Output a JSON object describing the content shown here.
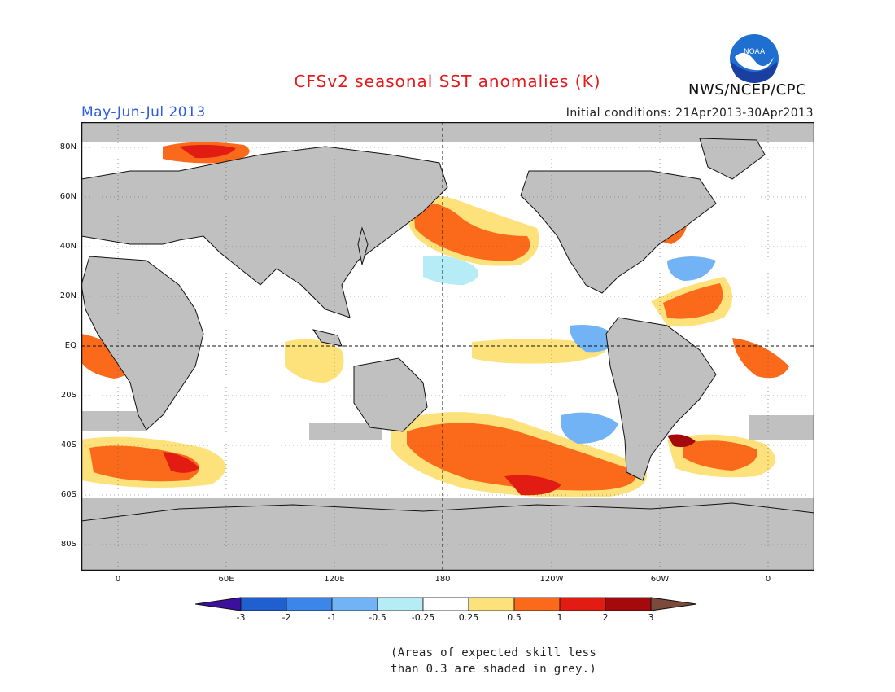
{
  "header": {
    "title": "CFSv2 seasonal SST anomalies (K)",
    "season": "May-Jun-Jul 2013",
    "initial_conditions": "Initial conditions: 21Apr2013-30Apr2013",
    "agency": "NWS/NCEP/CPC",
    "logo_text": "NOAA"
  },
  "map": {
    "lat_labels": [
      "80N",
      "60N",
      "40N",
      "20N",
      "EQ",
      "20S",
      "40S",
      "60S",
      "80S"
    ],
    "lon_labels": [
      "0",
      "60E",
      "120E",
      "180",
      "120W",
      "60W",
      "0"
    ],
    "land_color": "#c0c0c0",
    "ocean_color": "#ffffff"
  },
  "colorbar": {
    "ticks": [
      "-3",
      "-2",
      "-1",
      "-0.5",
      "-0.25",
      "0.25",
      "0.5",
      "1",
      "2",
      "3"
    ],
    "colors": [
      "#3d0f9f",
      "#1f5fcf",
      "#3b86e8",
      "#72b3f5",
      "#b5ecf5",
      "#ffffff",
      "#fde17a",
      "#fa6a1a",
      "#e21c12",
      "#a4090b",
      "#7b4a3a"
    ]
  },
  "note": {
    "line1": "(Areas of expected skill less",
    "line2": "than 0.3 are shaded in grey.)"
  }
}
